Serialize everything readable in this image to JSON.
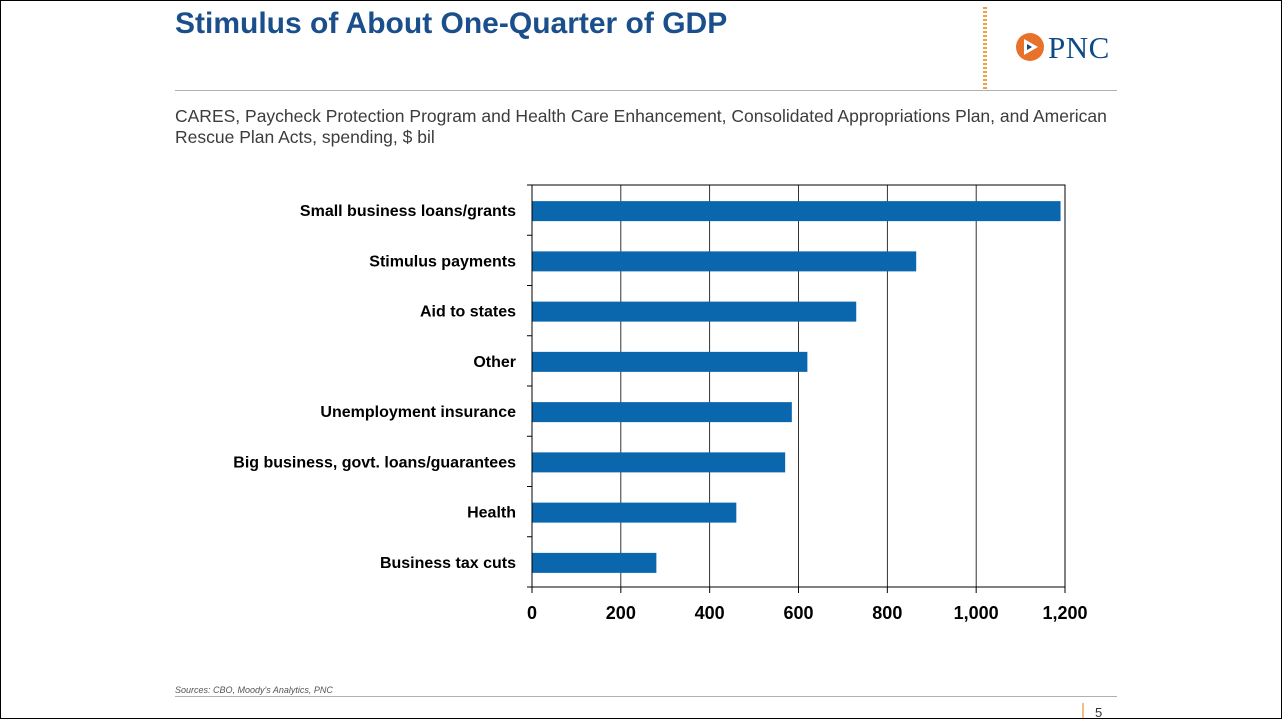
{
  "slide": {
    "title": "Stimulus of About One-Quarter of GDP",
    "subtitle": "CARES, Paycheck Protection Program and Health Care Enhancement, Consolidated Appropriations Plan, and American Rescue Plan Acts, spending, $ bil",
    "logo_text": "PNC",
    "sources": "Sources: CBO, Moody's Analytics, PNC",
    "page_number": "5"
  },
  "colors": {
    "title": "#1a4f8b",
    "bar": "#0b67ad",
    "logo_orange": "#e8722c",
    "logo_blue": "#0d4a86",
    "accent_dots": "#f0a040"
  },
  "icons": {
    "logo": "pnc-logo-icon"
  },
  "chart_data": {
    "type": "bar",
    "orientation": "horizontal",
    "categories": [
      "Small business loans/grants",
      "Stimulus payments",
      "Aid to states",
      "Other",
      "Unemployment insurance",
      "Big business, govt. loans/guarantees",
      "Health",
      "Business tax cuts"
    ],
    "values": [
      1190,
      865,
      730,
      620,
      585,
      570,
      460,
      280
    ],
    "xlim": [
      0,
      1200
    ],
    "xticks": [
      0,
      200,
      400,
      600,
      800,
      1000,
      1200
    ],
    "xtick_labels": [
      "0",
      "200",
      "400",
      "600",
      "800",
      "1,000",
      "1,200"
    ],
    "grid": "vertical",
    "legend": "none",
    "title": "",
    "xlabel": "",
    "ylabel": ""
  }
}
